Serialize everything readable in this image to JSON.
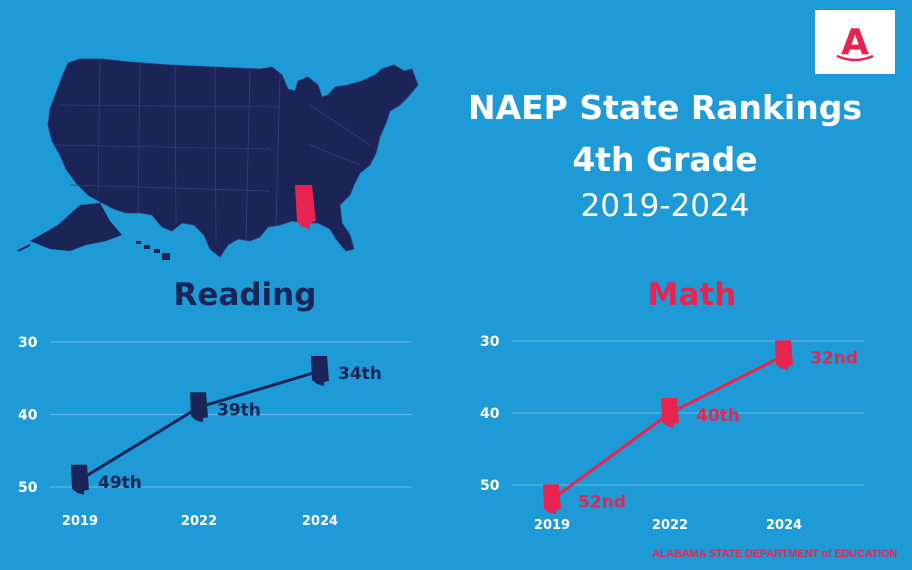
{
  "header": {
    "title_line1": "NAEP State Rankings",
    "title_line2": "4th Grade",
    "title_line3": "2019-2024"
  },
  "logo": {
    "letter": "A",
    "icon": "alabama-a-logo-icon"
  },
  "map": {
    "icon": "us-map-icon",
    "highlighted_state": "Alabama"
  },
  "footer": {
    "text": "ALABAMA STATE DEPARTMENT of EDUCATION"
  },
  "colors": {
    "background": "#1e9ad6",
    "navy": "#1a2456",
    "red": "#e8234f",
    "white": "#ffffff"
  },
  "chart_data": [
    {
      "type": "line",
      "title": "Reading",
      "categories": [
        "2019",
        "2022",
        "2024"
      ],
      "values": [
        49,
        39,
        34
      ],
      "data_labels": [
        "49th",
        "39th",
        "34th"
      ],
      "y_ticks": [
        "30",
        "40",
        "50"
      ],
      "ylim": [
        30,
        50
      ],
      "y_inverted": true,
      "grid": true,
      "color": "#1a2456",
      "marker": "alabama-state-icon"
    },
    {
      "type": "line",
      "title": "Math",
      "categories": [
        "2019",
        "2022",
        "2024"
      ],
      "values": [
        52,
        40,
        32
      ],
      "data_labels": [
        "52nd",
        "40th",
        "32nd"
      ],
      "y_ticks": [
        "30",
        "40",
        "50"
      ],
      "ylim": [
        30,
        50
      ],
      "y_inverted": true,
      "grid": true,
      "color": "#e8234f",
      "marker": "alabama-state-icon"
    }
  ]
}
